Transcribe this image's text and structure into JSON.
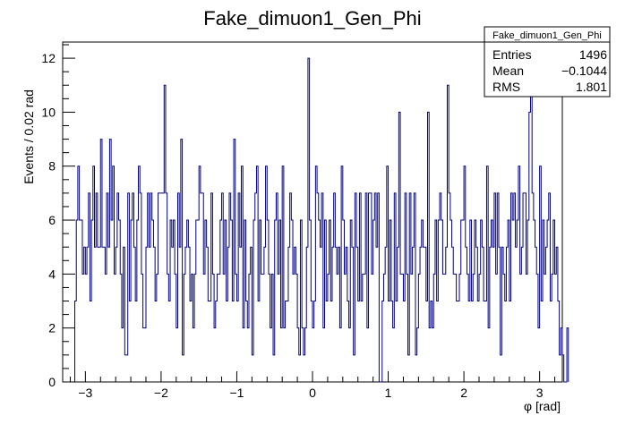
{
  "chart_data": {
    "type": "histogram",
    "title": "Fake_dimuon1_Gen_Phi",
    "xlabel": "φ [rad]",
    "ylabel": "Events / 0.02 rad",
    "xlim": [
      -3.3,
      3.3
    ],
    "ylim": [
      0,
      12.6
    ],
    "bin_width": 0.02,
    "x_start": -3.14,
    "x_ticks": [
      -3,
      -2,
      -1,
      0,
      1,
      2,
      3
    ],
    "x_tick_labels": [
      "−3",
      "−2",
      "−1",
      "0",
      "1",
      "2",
      "3"
    ],
    "y_ticks": [
      0,
      2,
      4,
      6,
      8,
      10,
      12
    ],
    "y_tick_labels": [
      "0",
      "2",
      "4",
      "6",
      "8",
      "10",
      "12"
    ],
    "grid": false,
    "line_color": "#000080",
    "counts": [
      3,
      6,
      8,
      6,
      6,
      4,
      5,
      4,
      5,
      7,
      3,
      6,
      8,
      5,
      7,
      5,
      5,
      9,
      5,
      5,
      4,
      7,
      5,
      9,
      6,
      8,
      4,
      5,
      7,
      6,
      4,
      2,
      5,
      1,
      1,
      7,
      3,
      6,
      7,
      5,
      3,
      6,
      8,
      7,
      4,
      2,
      2,
      5,
      7,
      5,
      7,
      6,
      5,
      3,
      4,
      7,
      7,
      7,
      7,
      11,
      7,
      4,
      3,
      6,
      5,
      6,
      4,
      2,
      7,
      5,
      9,
      1,
      4,
      5,
      6,
      5,
      3,
      4,
      2,
      4,
      6,
      6,
      8,
      7,
      7,
      4,
      6,
      5,
      3,
      3,
      7,
      4,
      2,
      3,
      4,
      4,
      6,
      7,
      4,
      6,
      3,
      5,
      7,
      6,
      3,
      9,
      4,
      3,
      7,
      5,
      8,
      2,
      6,
      3,
      2,
      4,
      5,
      1,
      6,
      7,
      8,
      3,
      6,
      4,
      4,
      5,
      8,
      6,
      4,
      2,
      4,
      1,
      6,
      7,
      4,
      6,
      2,
      8,
      2,
      3,
      3,
      5,
      7,
      6,
      4,
      5,
      4,
      2,
      1,
      6,
      2,
      1,
      2,
      5,
      12,
      6,
      3,
      2,
      3,
      8,
      7,
      6,
      5,
      7,
      2,
      6,
      3,
      4,
      6,
      3,
      5,
      7,
      5,
      4,
      5,
      2,
      8,
      6,
      4,
      5,
      3,
      2,
      6,
      5,
      1,
      7,
      5,
      3,
      7,
      3,
      4,
      4,
      7,
      2,
      7,
      7,
      4,
      6,
      7,
      5,
      7,
      0,
      0,
      3,
      4,
      5,
      8,
      3,
      6,
      3,
      2,
      7,
      3,
      5,
      10,
      4,
      4,
      3,
      7,
      4,
      1,
      7,
      4,
      5,
      7,
      1,
      2,
      4,
      5,
      6,
      5,
      5,
      3,
      10,
      2,
      3,
      2,
      4,
      6,
      3,
      6,
      7,
      6,
      4,
      4,
      5,
      11,
      7,
      6,
      5,
      4,
      4,
      3,
      3,
      4,
      6,
      6,
      8,
      5,
      4,
      3,
      6,
      3,
      4,
      6,
      5,
      3,
      4,
      6,
      5,
      3,
      3,
      8,
      2,
      5,
      6,
      5,
      7,
      4,
      7,
      5,
      1,
      5,
      4,
      3,
      5,
      6,
      3,
      7,
      6,
      7,
      5,
      6,
      8,
      4,
      5,
      7,
      7,
      4,
      6,
      10,
      11,
      7,
      6,
      5,
      4,
      2,
      8,
      3,
      6,
      4,
      5,
      6,
      7,
      3,
      4,
      6,
      4,
      5,
      3,
      1,
      2,
      1,
      0,
      0,
      2
    ]
  },
  "stats": {
    "title": "Fake_dimuon1_Gen_Phi",
    "rows": [
      {
        "label": "Entries",
        "value": "1496"
      },
      {
        "label": "Mean",
        "value": "−0.1044"
      },
      {
        "label": "RMS",
        "value": "1.801"
      }
    ]
  }
}
